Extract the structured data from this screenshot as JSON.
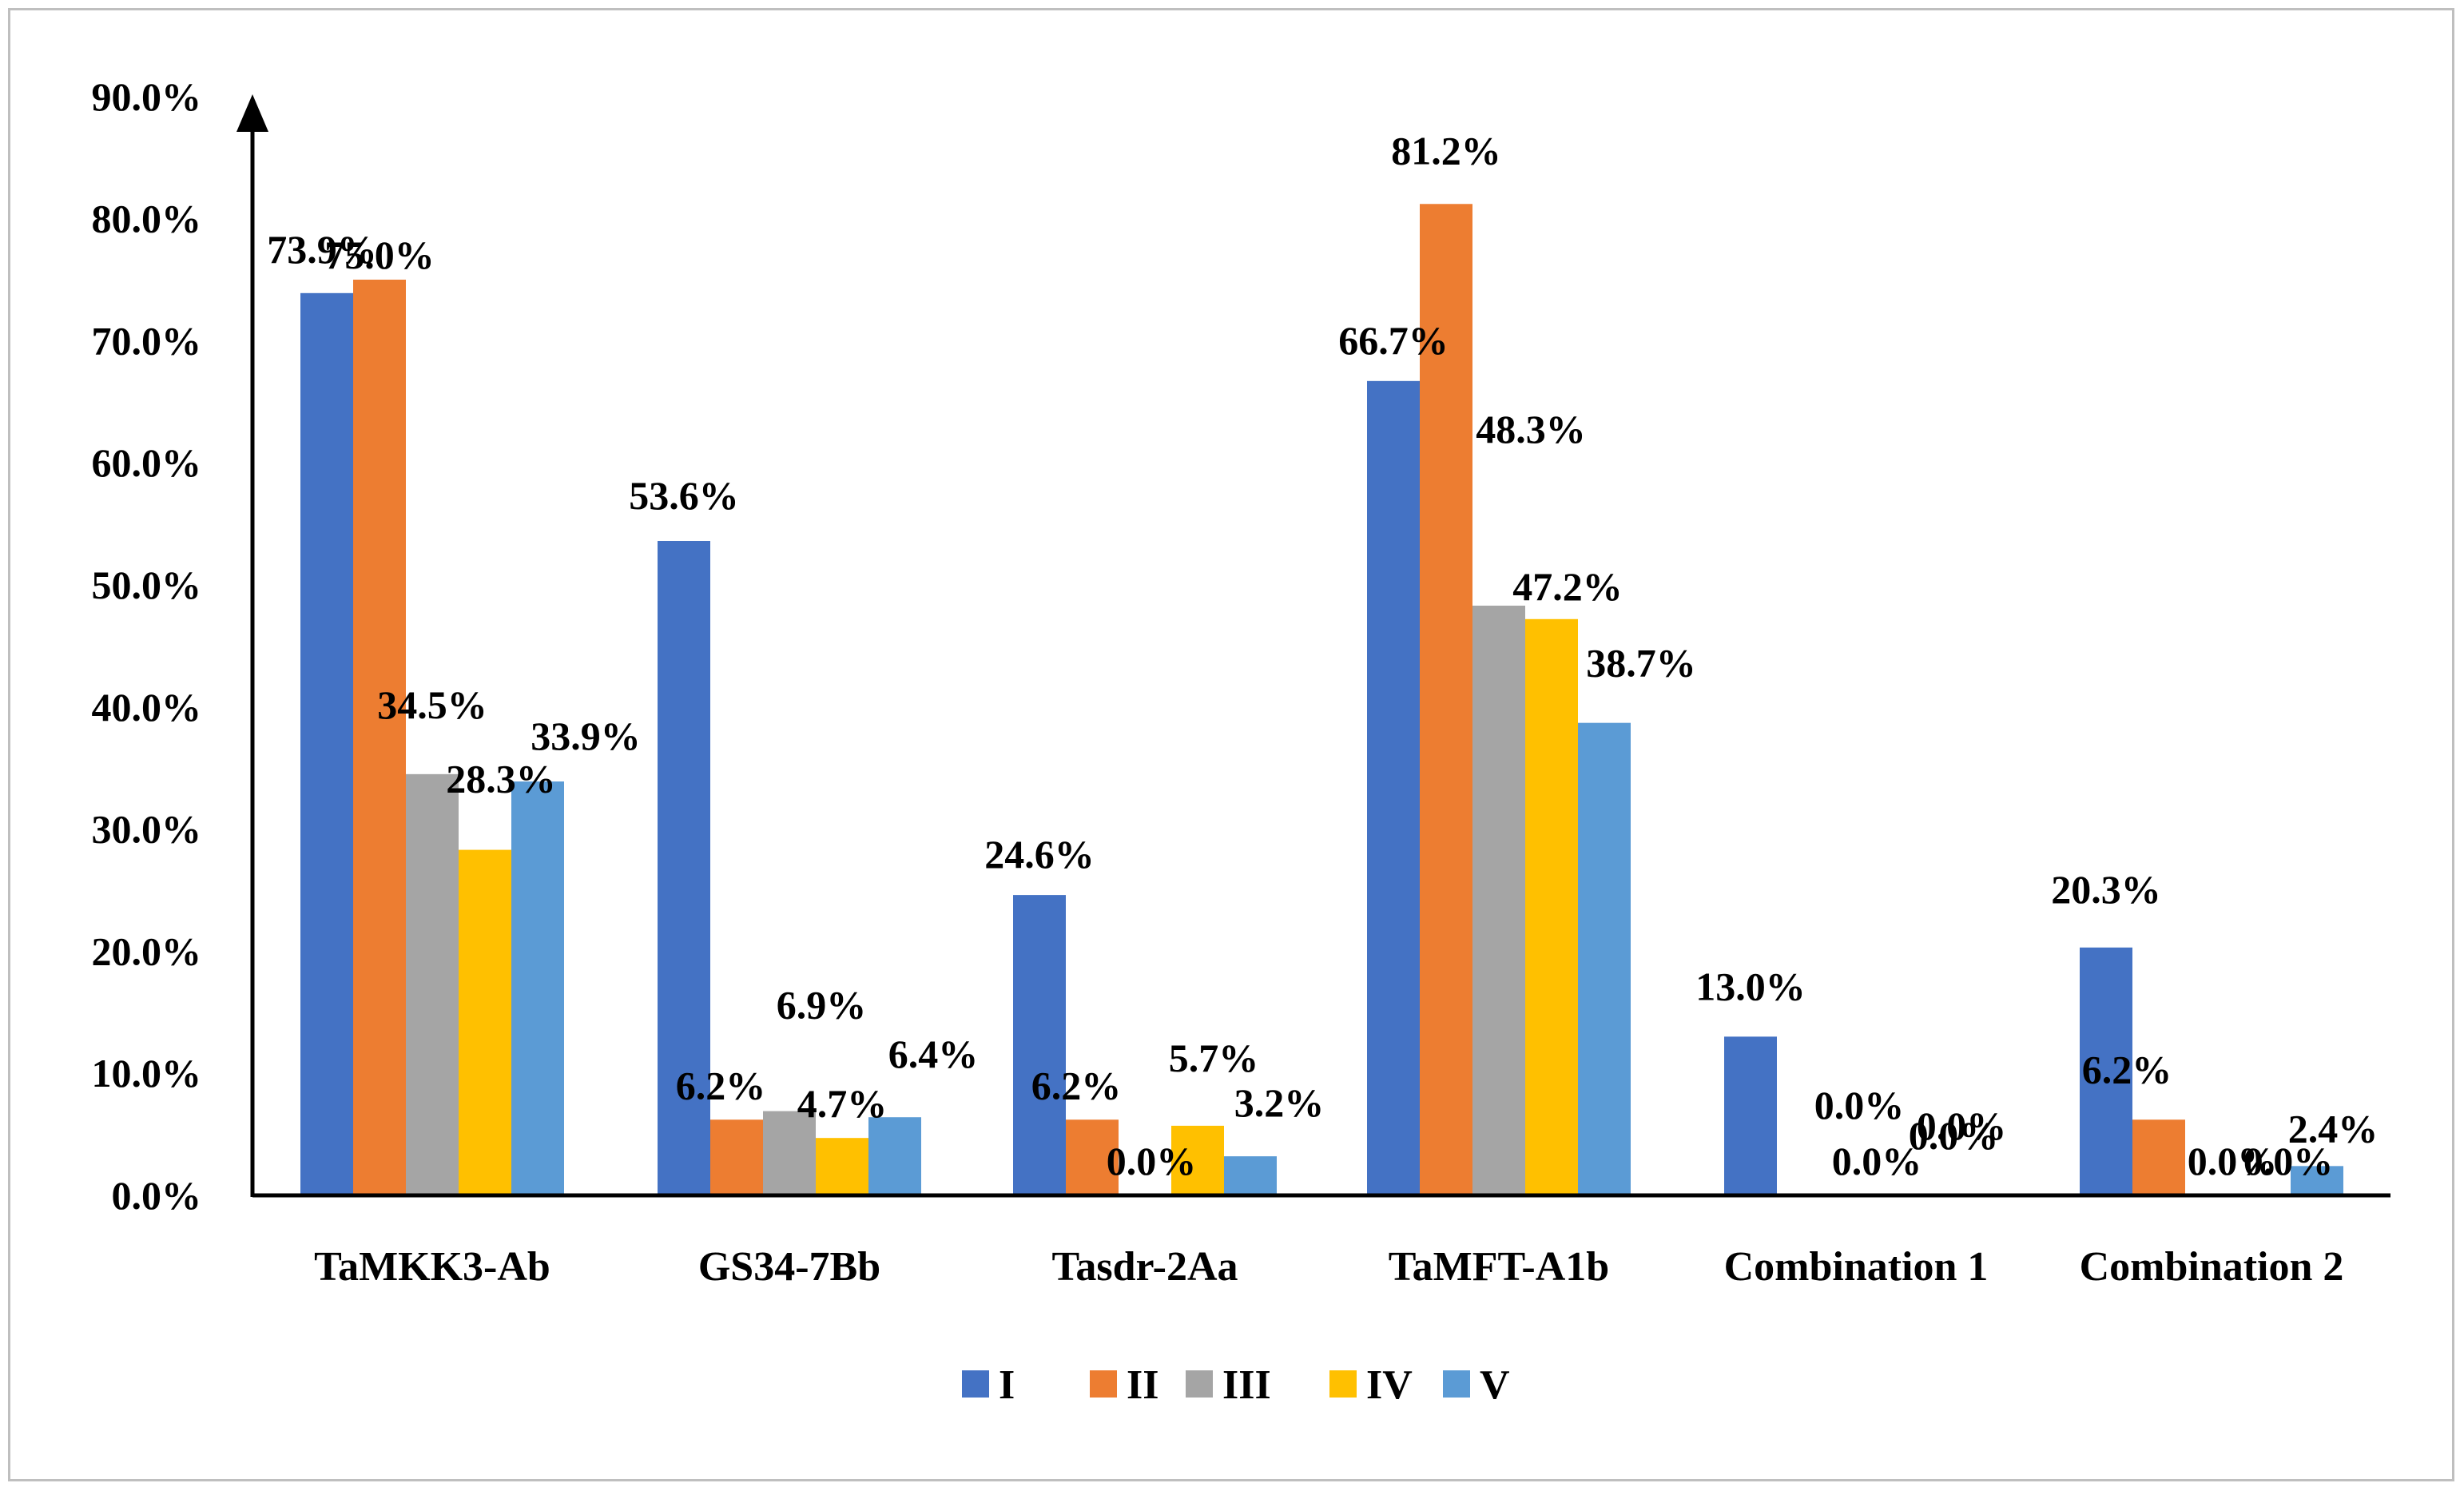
{
  "chart_data": {
    "type": "bar",
    "categories": [
      "TaMKK3-Ab",
      "GS34-7Bb",
      "Tasdr-2Aa",
      "TaMFT-A1b",
      "Combination 1",
      "Combination 2"
    ],
    "series": [
      {
        "name": "I",
        "color": "#4472C4",
        "values": [
          73.9,
          53.6,
          24.6,
          66.7,
          13.0,
          20.3
        ],
        "labels": [
          "73.9%",
          "53.6%",
          "24.6%",
          "66.7%",
          "13.0%",
          "20.3%"
        ]
      },
      {
        "name": "II",
        "color": "#ED7D31",
        "values": [
          75.0,
          6.2,
          6.2,
          81.2,
          0.0,
          6.2
        ],
        "labels": [
          "75.0%",
          "6.2%",
          "6.2%",
          "81.2%",
          "0.0%",
          "6.2%"
        ]
      },
      {
        "name": "III",
        "color": "#A5A5A5",
        "values": [
          34.5,
          6.9,
          0.0,
          48.3,
          0.0,
          0.0
        ],
        "labels": [
          "34.5%",
          "6.9%",
          "0.0%",
          "48.3%",
          "0.0%",
          "0.0%"
        ]
      },
      {
        "name": "IV",
        "color": "#FFC000",
        "values": [
          28.3,
          4.7,
          5.7,
          47.2,
          0.0,
          0.0
        ],
        "labels": [
          "28.3%",
          "4.7%",
          "5.7%",
          "47.2%",
          "0.0%",
          "0.0%"
        ]
      },
      {
        "name": "V",
        "color": "#5B9BD5",
        "values": [
          33.9,
          6.4,
          3.2,
          38.7,
          0.0,
          2.4
        ],
        "labels": [
          "33.9%",
          "6.4%",
          "3.2%",
          "38.7%",
          "0.0%",
          "2.4%"
        ]
      }
    ],
    "yticks": [
      "0.0%",
      "10.0%",
      "20.0%",
      "30.0%",
      "40.0%",
      "50.0%",
      "60.0%",
      "70.0%",
      "80.0%",
      "90.0%"
    ],
    "ylim": [
      0,
      90
    ],
    "grid": false,
    "legend_position": "bottom",
    "title": "",
    "xlabel": "",
    "ylabel": ""
  }
}
